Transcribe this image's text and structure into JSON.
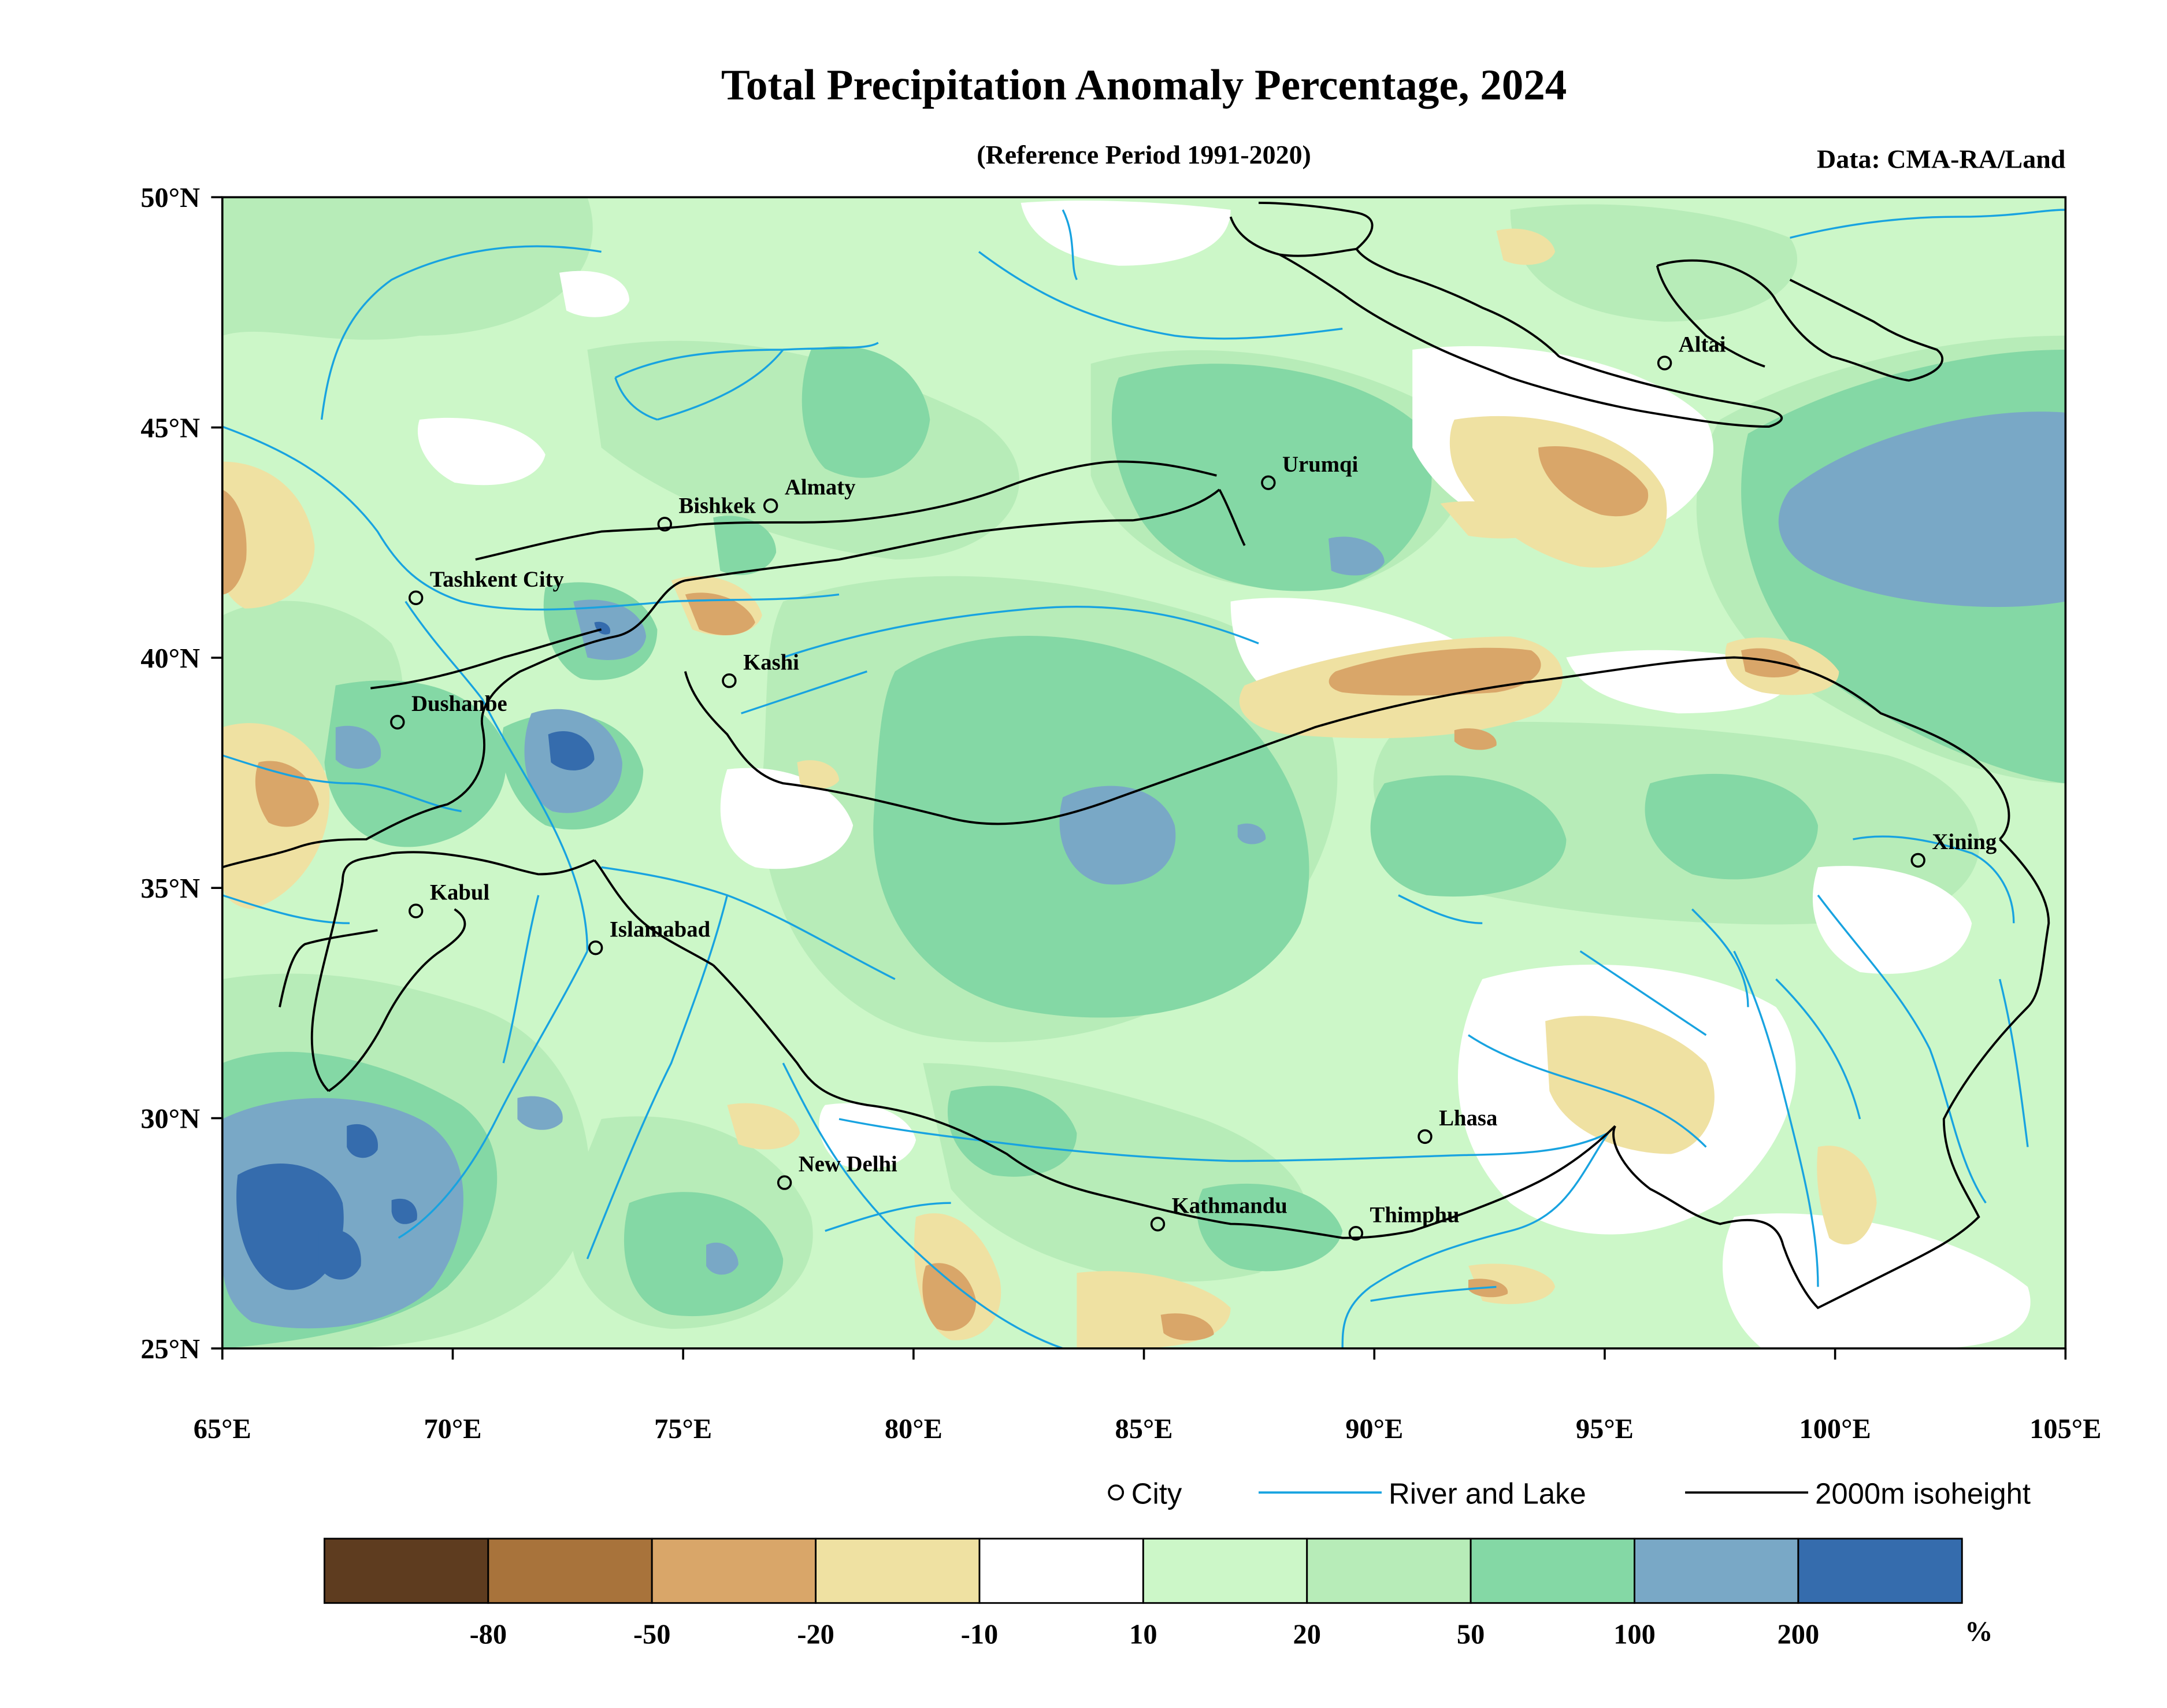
{
  "title": "Total Precipitation Anomaly Percentage, 2024",
  "subtitle": "(Reference Period 1991-2020)",
  "source": "Data: CMA-RA/Land",
  "axes": {
    "lon_ticks": [
      "65°E",
      "70°E",
      "75°E",
      "80°E",
      "85°E",
      "90°E",
      "95°E",
      "100°E",
      "105°E"
    ],
    "lat_ticks": [
      "50°N",
      "45°N",
      "40°N",
      "35°N",
      "30°N",
      "25°N"
    ],
    "lon_range": [
      65,
      105
    ],
    "lat_range": [
      25,
      50
    ]
  },
  "cities": [
    {
      "name": "Altai",
      "lon": 96.3,
      "lat": 46.4
    },
    {
      "name": "Urumqi",
      "lon": 87.7,
      "lat": 43.8
    },
    {
      "name": "Bishkek",
      "lon": 74.6,
      "lat": 42.9
    },
    {
      "name": "Almaty",
      "lon": 76.9,
      "lat": 43.3
    },
    {
      "name": "Tashkent City",
      "lon": 69.2,
      "lat": 41.3
    },
    {
      "name": "Kashi",
      "lon": 76.0,
      "lat": 39.5
    },
    {
      "name": "Dushanbe",
      "lon": 68.8,
      "lat": 38.6
    },
    {
      "name": "Xining",
      "lon": 101.8,
      "lat": 35.6
    },
    {
      "name": "Kabul",
      "lon": 69.2,
      "lat": 34.5
    },
    {
      "name": "Islamabad",
      "lon": 73.1,
      "lat": 33.7
    },
    {
      "name": "Lhasa",
      "lon": 91.1,
      "lat": 29.6
    },
    {
      "name": "New Delhi",
      "lon": 77.2,
      "lat": 28.6
    },
    {
      "name": "Kathmandu",
      "lon": 85.3,
      "lat": 27.7
    },
    {
      "name": "Thimphu",
      "lon": 89.6,
      "lat": 27.5
    }
  ],
  "legend": {
    "city": "City",
    "river": "River and Lake",
    "isoheight": "2000m isoheight"
  },
  "colorbar": {
    "colors": [
      "#5e3c1f",
      "#a8733b",
      "#d9a669",
      "#efe1a2",
      "#ffffff",
      "#ccf7c8",
      "#b7ecb8",
      "#84d8a5",
      "#79a8c6",
      "#356cad"
    ],
    "labels": [
      "-80",
      "-50",
      "-20",
      "-10",
      "10",
      "20",
      "50",
      "100",
      "200"
    ],
    "unit": "%"
  },
  "colors": {
    "river": "#18a3e0",
    "isoheight": "#000000",
    "frame": "#000000"
  }
}
